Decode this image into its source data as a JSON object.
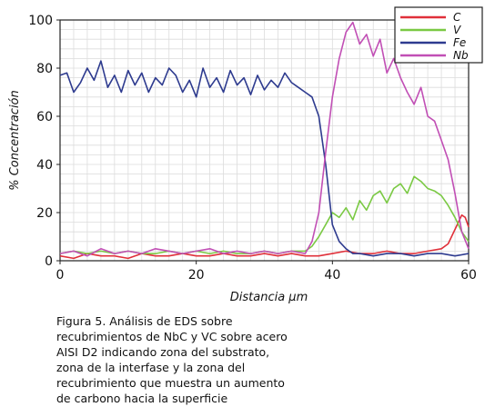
{
  "chart_data": {
    "type": "line",
    "title": "",
    "xlabel": "Distancia µm",
    "ylabel": "% Concentración",
    "xlim": [
      0,
      60
    ],
    "ylim": [
      0,
      100
    ],
    "x_ticks": [
      "0",
      "20",
      "40",
      "60"
    ],
    "y_ticks": [
      "0",
      "20",
      "40",
      "60",
      "80",
      "100"
    ],
    "grid": true,
    "legend_position": "top-right",
    "series": [
      {
        "name": "C",
        "color": "#e0303a",
        "x": [
          0,
          2,
          4,
          6,
          8,
          10,
          12,
          14,
          16,
          18,
          20,
          22,
          24,
          26,
          28,
          30,
          32,
          34,
          36,
          38,
          40,
          42,
          44,
          46,
          48,
          50,
          52,
          54,
          56,
          57,
          58,
          59,
          59.5,
          60
        ],
        "y": [
          2,
          1,
          3,
          2,
          2,
          1,
          3,
          2,
          2,
          3,
          2,
          2,
          3,
          2,
          2,
          3,
          2,
          3,
          2,
          2,
          3,
          4,
          3,
          3,
          4,
          3,
          3,
          4,
          5,
          7,
          13,
          19,
          18,
          14
        ]
      },
      {
        "name": "V",
        "color": "#7ac943",
        "x": [
          0,
          2,
          4,
          6,
          8,
          10,
          12,
          14,
          16,
          18,
          20,
          22,
          24,
          26,
          28,
          30,
          32,
          34,
          36,
          37,
          38,
          39,
          40,
          41,
          42,
          43,
          44,
          45,
          46,
          47,
          48,
          49,
          50,
          51,
          52,
          53,
          54,
          55,
          56,
          57,
          58,
          59,
          60
        ],
        "y": [
          3,
          4,
          3,
          4,
          3,
          4,
          3,
          3,
          4,
          3,
          4,
          3,
          4,
          3,
          3,
          4,
          3,
          4,
          4,
          6,
          10,
          15,
          20,
          18,
          22,
          17,
          25,
          21,
          27,
          29,
          24,
          30,
          32,
          28,
          35,
          33,
          30,
          29,
          27,
          23,
          18,
          12,
          8
        ]
      },
      {
        "name": "Fe",
        "color": "#2e3b8f",
        "x": [
          0,
          1,
          2,
          3,
          4,
          5,
          6,
          7,
          8,
          9,
          10,
          11,
          12,
          13,
          14,
          15,
          16,
          17,
          18,
          19,
          20,
          21,
          22,
          23,
          24,
          25,
          26,
          27,
          28,
          29,
          30,
          31,
          32,
          33,
          34,
          35,
          36,
          37,
          38,
          39,
          40,
          41,
          42,
          43,
          44,
          46,
          48,
          50,
          52,
          54,
          56,
          58,
          60
        ],
        "y": [
          77,
          78,
          70,
          74,
          80,
          75,
          83,
          72,
          77,
          70,
          79,
          73,
          78,
          70,
          76,
          73,
          80,
          77,
          70,
          75,
          68,
          80,
          72,
          76,
          70,
          79,
          73,
          76,
          69,
          77,
          71,
          75,
          72,
          78,
          74,
          72,
          70,
          68,
          60,
          40,
          15,
          8,
          5,
          3,
          3,
          2,
          3,
          3,
          2,
          3,
          3,
          2,
          3
        ]
      },
      {
        "name": "Nb",
        "color": "#c14fb5",
        "x": [
          0,
          2,
          4,
          6,
          8,
          10,
          12,
          14,
          16,
          18,
          20,
          22,
          24,
          26,
          28,
          30,
          32,
          34,
          36,
          37,
          38,
          39,
          40,
          41,
          42,
          43,
          44,
          45,
          46,
          47,
          48,
          49,
          50,
          51,
          52,
          53,
          54,
          55,
          56,
          57,
          58,
          59,
          60
        ],
        "y": [
          3,
          4,
          2,
          5,
          3,
          4,
          3,
          5,
          4,
          3,
          4,
          5,
          3,
          4,
          3,
          4,
          3,
          4,
          3,
          8,
          20,
          45,
          68,
          84,
          95,
          99,
          90,
          94,
          85,
          92,
          78,
          84,
          76,
          70,
          65,
          72,
          60,
          58,
          50,
          42,
          28,
          12,
          5
        ]
      }
    ]
  },
  "caption": {
    "lines": [
      "Figura 5. Análisis de EDS sobre",
      "recubrimientos de NbC y VC sobre acero",
      "AISI D2 indicando zona del substrato,",
      "zona de la interfase y la zona del",
      "recubrimiento que muestra un aumento",
      "de carbono hacia la superficie"
    ]
  }
}
